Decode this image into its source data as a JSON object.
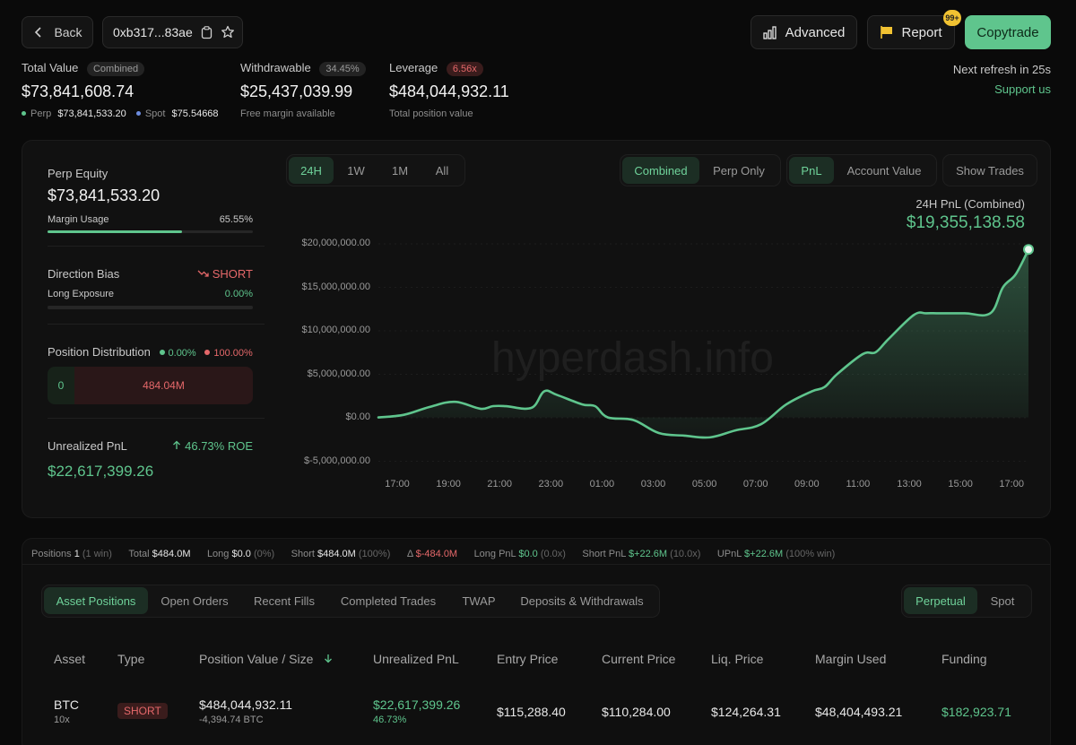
{
  "header": {
    "back_label": "Back",
    "address": "0xb317...83ae",
    "advanced_label": "Advanced",
    "report_label": "Report",
    "report_badge": "99+",
    "copytrade_label": "Copytrade"
  },
  "summary": {
    "total_value_label": "Total Value",
    "total_value_pill": "Combined",
    "total_value": "$73,841,608.74",
    "perp_label": "Perp",
    "perp_value": "$73,841,533.20",
    "spot_label": "Spot",
    "spot_value": "$75.54668",
    "withdrawable_label": "Withdrawable",
    "withdrawable_pill": "34.45%",
    "withdrawable_value": "$25,437,039.99",
    "withdrawable_sub": "Free margin available",
    "leverage_label": "Leverage",
    "leverage_pill": "6.56x",
    "leverage_value": "$484,044,932.11",
    "leverage_sub": "Total position value",
    "refresh_text": "Next refresh in 25s",
    "support_label": "Support us"
  },
  "left_panel": {
    "perp_equity_label": "Perp Equity",
    "perp_equity_value": "$73,841,533.20",
    "margin_usage_label": "Margin Usage",
    "margin_usage_value": "65.55%",
    "margin_usage_fraction": 0.6555,
    "direction_bias_label": "Direction Bias",
    "direction_bias_value": "SHORT",
    "long_exposure_label": "Long Exposure",
    "long_exposure_value": "0.00%",
    "position_distribution_label": "Position Distribution",
    "dist_long_pct": "0.00%",
    "dist_short_pct": "100.00%",
    "dist_long_value": "0",
    "dist_short_value": "484.04M",
    "unrealized_pnl_label": "Unrealized PnL",
    "roe_value": "46.73% ROE",
    "unrealized_pnl_value": "$22,617,399.26"
  },
  "chart_controls": {
    "ranges": [
      "24H",
      "1W",
      "1M",
      "All"
    ],
    "active_range": "24H",
    "modes": [
      "Combined",
      "Perp Only"
    ],
    "metrics": [
      "PnL",
      "Account Value"
    ],
    "show_trades_label": "Show Trades",
    "pnl_title": "24H PnL (Combined)",
    "pnl_value": "$19,355,138.58",
    "watermark": "hyperdash.info"
  },
  "chart_data": {
    "type": "area",
    "x": [
      "16:00",
      "17:00",
      "18:00",
      "19:00",
      "20:00",
      "20:30",
      "21:00",
      "22:00",
      "22:30",
      "23:00",
      "00:00",
      "00:30",
      "01:00",
      "02:00",
      "03:00",
      "04:00",
      "05:00",
      "06:00",
      "07:00",
      "08:00",
      "09:00",
      "09:30",
      "10:00",
      "11:00",
      "11:30",
      "12:00",
      "13:00",
      "13:30",
      "14:00",
      "15:00",
      "16:00",
      "16:30",
      "17:00",
      "17:30"
    ],
    "series": [
      {
        "values": [
          0,
          300000,
          1200000,
          1800000,
          1000000,
          1300000,
          1300000,
          1100000,
          3000000,
          2600000,
          1500000,
          1300000,
          0,
          -300000,
          -1800000,
          -2100000,
          -2300000,
          -1500000,
          -800000,
          1500000,
          3000000,
          3500000,
          5000000,
          7300000,
          7500000,
          9000000,
          11800000,
          12000000,
          12000000,
          12000000,
          12000000,
          15000000,
          16500000,
          19355138.58
        ]
      }
    ],
    "y_ticks": [
      "$20,000,000.00",
      "$15,000,000.00",
      "$10,000,000.00",
      "$5,000,000.00",
      "$0.00",
      "$-5,000,000.00"
    ],
    "x_ticks": [
      "17:00",
      "19:00",
      "21:00",
      "23:00",
      "01:00",
      "03:00",
      "05:00",
      "07:00",
      "09:00",
      "11:00",
      "13:00",
      "15:00",
      "17:00"
    ],
    "ylim": [
      -5000000,
      20000000
    ],
    "line_color": "#5fc58d",
    "grid": true
  },
  "positions_summary": {
    "positions_label": "Positions",
    "positions_count": "1",
    "positions_win": "(1 win)",
    "total_label": "Total",
    "total_value": "$484.0M",
    "long_label": "Long",
    "long_value": "$0.0",
    "long_pct": "(0%)",
    "short_label": "Short",
    "short_value": "$484.0M",
    "short_pct": "(100%)",
    "delta_label": "Δ",
    "delta_value": "$-484.0M",
    "long_pnl_label": "Long PnL",
    "long_pnl_value": "$0.0",
    "long_pnl_x": "(0.0x)",
    "short_pnl_label": "Short PnL",
    "short_pnl_value": "$+22.6M",
    "short_pnl_x": "(10.0x)",
    "upnl_label": "UPnL",
    "upnl_value": "$+22.6M",
    "upnl_win": "(100% win)"
  },
  "tabs": {
    "items": [
      "Asset Positions",
      "Open Orders",
      "Recent Fills",
      "Completed Trades",
      "TWAP",
      "Deposits & Withdrawals"
    ],
    "active": "Asset Positions",
    "market_items": [
      "Perpetual",
      "Spot"
    ],
    "market_active": "Perpetual"
  },
  "table": {
    "headers": [
      "Asset",
      "Type",
      "Position Value / Size",
      "Unrealized PnL",
      "Entry Price",
      "Current Price",
      "Liq. Price",
      "Margin Used",
      "Funding"
    ],
    "rows": [
      {
        "asset": "BTC",
        "leverage": "10x",
        "type": "SHORT",
        "position_value": "$484,044,932.11",
        "size": "-4,394.74 BTC",
        "unrealized_pnl": "$22,617,399.26",
        "unrealized_pct": "46.73%",
        "entry_price": "$115,288.40",
        "current_price": "$110,284.00",
        "liq_price": "$124,264.31",
        "margin_used": "$48,404,493.21",
        "funding": "$182,923.71"
      }
    ]
  }
}
